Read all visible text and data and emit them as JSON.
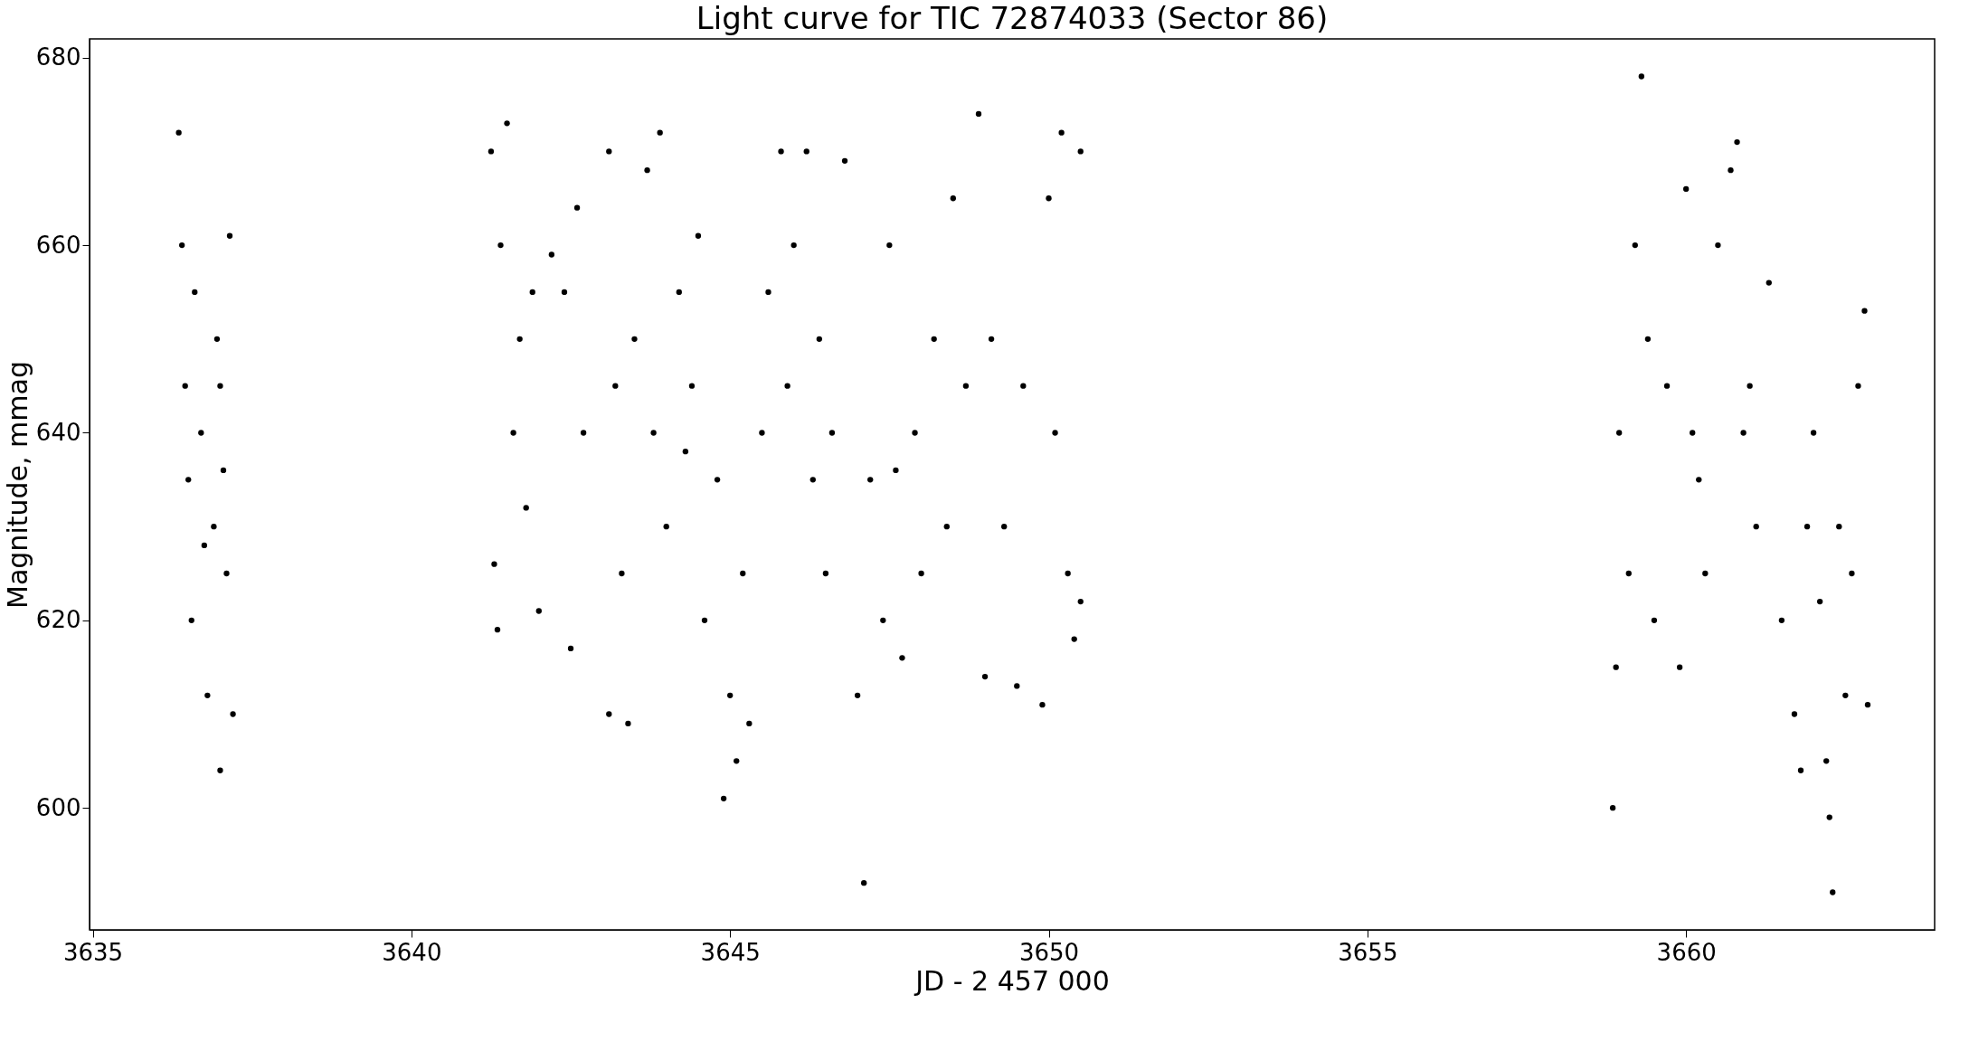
{
  "chart_data": {
    "type": "scatter",
    "title": "Light curve for TIC 72874033 (Sector 86)",
    "xlabel": "JD - 2 457 000",
    "ylabel": "Magnitude, mmag",
    "xlim": [
      3634.95,
      3663.9
    ],
    "ylim": [
      587,
      682
    ],
    "xticks": [
      3635,
      3640,
      3645,
      3650,
      3655,
      3660
    ],
    "yticks": [
      600,
      620,
      640,
      660,
      680
    ],
    "grid": false,
    "legend": false,
    "marker": "circle",
    "series": [
      {
        "color": "#000000",
        "x": [
          3636.35,
          3636.4,
          3636.45,
          3636.5,
          3636.55,
          3636.6,
          3636.7,
          3636.75,
          3636.8,
          3636.9,
          3636.95,
          3637.0,
          3637.0,
          3637.05,
          3637.1,
          3637.15,
          3637.2,
          3641.25,
          3641.3,
          3641.35,
          3641.4,
          3641.5,
          3641.6,
          3641.7,
          3641.8,
          3641.9,
          3642.0,
          3642.2,
          3642.4,
          3642.5,
          3642.6,
          3642.7,
          3643.1,
          3643.1,
          3643.2,
          3643.3,
          3643.4,
          3643.5,
          3643.7,
          3643.8,
          3643.9,
          3644.0,
          3644.2,
          3644.3,
          3644.4,
          3644.5,
          3644.6,
          3644.8,
          3644.9,
          3645.0,
          3645.1,
          3645.2,
          3645.3,
          3645.5,
          3645.6,
          3645.8,
          3645.9,
          3646.0,
          3646.2,
          3646.3,
          3646.4,
          3646.5,
          3646.6,
          3646.8,
          3647.0,
          3647.1,
          3647.2,
          3647.4,
          3647.5,
          3647.6,
          3647.7,
          3647.9,
          3648.0,
          3648.2,
          3648.4,
          3648.5,
          3648.7,
          3648.9,
          3649.0,
          3649.1,
          3649.3,
          3649.5,
          3649.6,
          3649.9,
          3650.0,
          3650.1,
          3650.2,
          3650.3,
          3650.4,
          3650.5,
          3650.5,
          3658.85,
          3658.9,
          3658.95,
          3659.1,
          3659.2,
          3659.3,
          3659.4,
          3659.5,
          3659.7,
          3659.9,
          3660.0,
          3660.1,
          3660.2,
          3660.3,
          3660.5,
          3660.7,
          3660.8,
          3660.9,
          3661.0,
          3661.1,
          3661.3,
          3661.5,
          3661.7,
          3661.8,
          3661.9,
          3662.0,
          3662.1,
          3662.2,
          3662.25,
          3662.3,
          3662.4,
          3662.5,
          3662.6,
          3662.7,
          3662.8,
          3662.85
        ],
        "values": [
          672,
          660,
          645,
          635,
          620,
          655,
          640,
          628,
          612,
          630,
          650,
          604,
          645,
          636,
          625,
          661,
          610,
          670,
          626,
          619,
          660,
          673,
          640,
          650,
          632,
          655,
          621,
          659,
          655,
          617,
          664,
          640,
          670,
          610,
          645,
          625,
          609,
          650,
          668,
          640,
          672,
          630,
          655,
          638,
          645,
          661,
          620,
          635,
          601,
          612,
          605,
          625,
          609,
          640,
          655,
          670,
          645,
          660,
          670,
          635,
          650,
          625,
          640,
          669,
          612,
          592,
          635,
          620,
          660,
          636,
          616,
          640,
          625,
          650,
          630,
          665,
          645,
          674,
          614,
          650,
          630,
          613,
          645,
          611,
          665,
          640,
          672,
          625,
          618,
          670,
          622,
          600,
          615,
          640,
          625,
          660,
          678,
          650,
          620,
          645,
          615,
          666,
          640,
          635,
          625,
          660,
          668,
          671,
          640,
          645,
          630,
          656,
          620,
          610,
          604,
          630,
          640,
          622,
          605,
          599,
          591,
          630,
          612,
          625,
          645,
          653,
          611
        ]
      }
    ]
  }
}
